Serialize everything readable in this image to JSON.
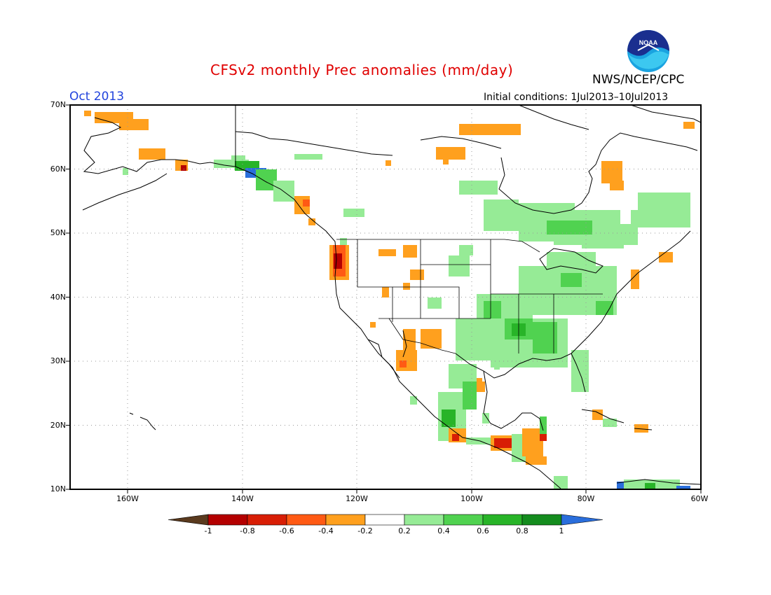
{
  "header": {
    "title": "CFSv2 monthly Prec anomalies (mm/day)",
    "agency": "NWS/NCEP/CPC",
    "month": "Oct 2013",
    "initial_conditions": "Initial conditions: 1Jul2013–10Jul2013",
    "logo_text": "NOAA"
  },
  "axes": {
    "lat_labels": [
      "70N",
      "60N",
      "50N",
      "40N",
      "30N",
      "20N",
      "10N"
    ],
    "lon_labels": [
      "160W",
      "140W",
      "120W",
      "100W",
      "80W",
      "60W"
    ]
  },
  "colorbar": {
    "labels": [
      "-1",
      "-0.8",
      "-0.6",
      "-0.4",
      "-0.2",
      "0.2",
      "0.4",
      "0.6",
      "0.8",
      "1"
    ],
    "colors": [
      "#5a3a1e",
      "#b40000",
      "#d81e05",
      "#ff5a14",
      "#ffa01e",
      "#ffffff",
      "#96eb96",
      "#50d250",
      "#28b428",
      "#148c1e",
      "#2a6edc"
    ]
  },
  "map_data": {
    "variable": "Precipitation anomalies",
    "units": "mm/day",
    "lon_range": [
      -170,
      -60
    ],
    "lat_range": [
      10,
      70
    ],
    "grid": "dotted",
    "anomaly_regions": [
      {
        "lon": [
          -164,
          -157
        ],
        "lat": [
          66,
          68
        ],
        "level": -0.3
      },
      {
        "lon": [
          -160,
          -156
        ],
        "lat": [
          61,
          63
        ],
        "level": -0.3
      },
      {
        "lon": [
          -151,
          -148
        ],
        "lat": [
          59,
          61
        ],
        "level": -0.3
      },
      {
        "lon": [
          -141,
          -135
        ],
        "lat": [
          59,
          62
        ],
        "level": 0.3
      },
      {
        "lon": [
          -140,
          -135
        ],
        "lat": [
          59,
          60
        ],
        "level": 0.7
      },
      {
        "lon": [
          -125,
          -123
        ],
        "lat": [
          43,
          47
        ],
        "level": -0.5
      },
      {
        "lon": [
          -125,
          -123
        ],
        "lat": [
          45,
          47
        ],
        "level": -0.7
      },
      {
        "lon": [
          -127,
          -125
        ],
        "lat": [
          51,
          54
        ],
        "level": -0.3
      },
      {
        "lon": [
          -118,
          -115
        ],
        "lat": [
          45,
          47
        ],
        "level": -0.3
      },
      {
        "lon": [
          -114,
          -110
        ],
        "lat": [
          42,
          44
        ],
        "level": -0.3
      },
      {
        "lon": [
          -103,
          -96
        ],
        "lat": [
          66,
          68
        ],
        "level": -0.3
      },
      {
        "lon": [
          -104,
          -101
        ],
        "lat": [
          62,
          64
        ],
        "level": -0.3
      },
      {
        "lon": [
          -78,
          -75
        ],
        "lat": [
          56,
          61
        ],
        "level": -0.3
      },
      {
        "lon": [
          -95,
          -70
        ],
        "lat": [
          48,
          56
        ],
        "level": 0.3
      },
      {
        "lon": [
          -95,
          -80
        ],
        "lat": [
          35,
          48
        ],
        "level": 0.3
      },
      {
        "lon": [
          -105,
          -82
        ],
        "lat": [
          30,
          38
        ],
        "level": 0.3
      },
      {
        "lon": [
          -92,
          -88
        ],
        "lat": [
          34,
          36
        ],
        "level": 0.5
      },
      {
        "lon": [
          -115,
          -112
        ],
        "lat": [
          27,
          31
        ],
        "level": -0.3
      },
      {
        "lon": [
          -105,
          -101
        ],
        "lat": [
          18,
          26
        ],
        "level": 0.3
      },
      {
        "lon": [
          -104,
          -102
        ],
        "lat": [
          19,
          21
        ],
        "level": 0.7
      },
      {
        "lon": [
          -97,
          -90
        ],
        "lat": [
          15,
          17
        ],
        "level": -0.5
      },
      {
        "lon": [
          -74,
          -70
        ],
        "lat": [
          40,
          44
        ],
        "level": -0.3
      },
      {
        "lon": [
          -72,
          -64
        ],
        "lat": [
          10,
          12
        ],
        "level": 0.3
      }
    ]
  }
}
